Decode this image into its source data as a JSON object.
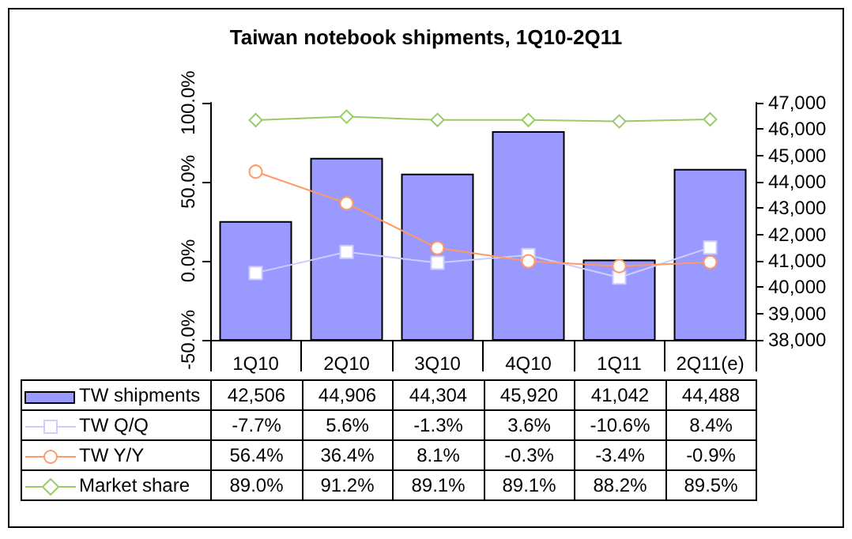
{
  "chart_data": {
    "type": "bar",
    "title": "Taiwan notebook shipments, 1Q10-2Q11",
    "categories": [
      "1Q10",
      "2Q10",
      "3Q10",
      "4Q10",
      "1Q11",
      "2Q11(e)"
    ],
    "series": [
      {
        "name": "TW shipments",
        "axis": "y2",
        "color": "#9999ff",
        "values": [
          42506,
          44906,
          44304,
          45920,
          41042,
          44488
        ],
        "value_labels": [
          "42,506",
          "44,906",
          "44,304",
          "45,920",
          "41,042",
          "44,488"
        ]
      },
      {
        "name": "TW Q/Q",
        "type": "line",
        "color": "#ccccff",
        "marker": "square",
        "values": [
          -7.7,
          5.6,
          -1.3,
          3.6,
          -10.6,
          8.4
        ],
        "value_labels": [
          "-7.7%",
          "5.6%",
          "-1.3%",
          "3.6%",
          "-10.6%",
          "8.4%"
        ]
      },
      {
        "name": "TW Y/Y",
        "type": "line",
        "color": "#ff9966",
        "marker": "circle",
        "values": [
          56.4,
          36.4,
          8.1,
          -0.3,
          -3.4,
          -0.9
        ],
        "value_labels": [
          "56.4%",
          "36.4%",
          "8.1%",
          "-0.3%",
          "-3.4%",
          "-0.9%"
        ]
      },
      {
        "name": "Market share",
        "type": "line",
        "color": "#99cc66",
        "marker": "diamond",
        "values": [
          89.0,
          91.2,
          89.1,
          89.1,
          88.2,
          89.5
        ],
        "value_labels": [
          "89.0%",
          "91.2%",
          "89.1%",
          "89.1%",
          "88.2%",
          "89.5%"
        ]
      }
    ],
    "ylim": [
      -50,
      100
    ],
    "yticks": [
      {
        "value": -50,
        "label": "-50.0%"
      },
      {
        "value": 0,
        "label": "0.0%"
      },
      {
        "value": 50,
        "label": "50.0%"
      },
      {
        "value": 100,
        "label": "100.0%"
      }
    ],
    "y2lim": [
      38000,
      47000
    ],
    "y2ticks": [
      {
        "value": 38000,
        "label": "38,000"
      },
      {
        "value": 39000,
        "label": "39,000"
      },
      {
        "value": 40000,
        "label": "40,000"
      },
      {
        "value": 41000,
        "label": "41,000"
      },
      {
        "value": 42000,
        "label": "42,000"
      },
      {
        "value": 43000,
        "label": "43,000"
      },
      {
        "value": 44000,
        "label": "44,000"
      },
      {
        "value": 45000,
        "label": "45,000"
      },
      {
        "value": 46000,
        "label": "46,000"
      },
      {
        "value": 47000,
        "label": "47,000"
      }
    ],
    "grid": false,
    "legend": "bottom"
  }
}
